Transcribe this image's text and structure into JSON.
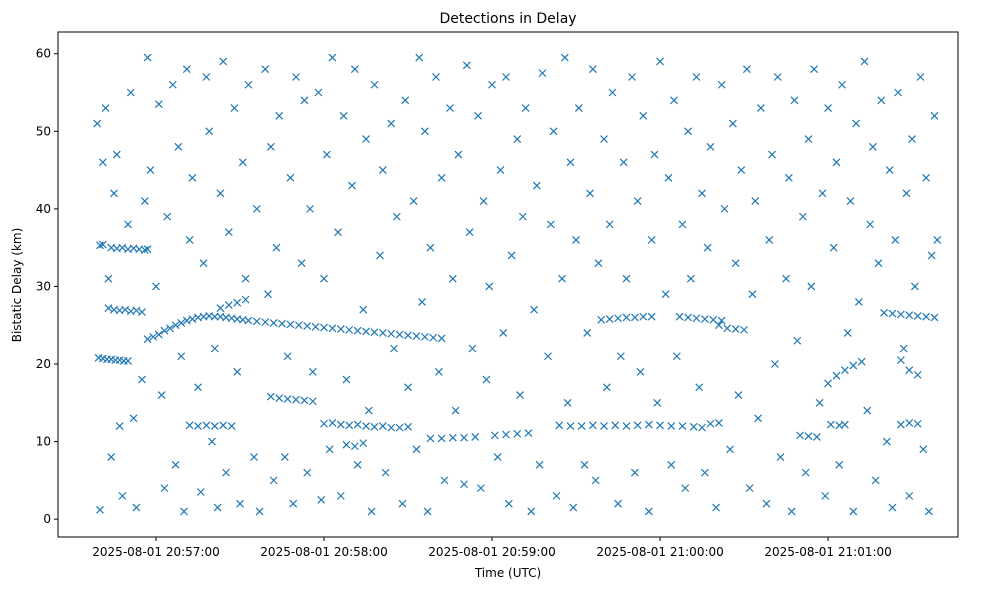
{
  "chart_data": {
    "type": "scatter",
    "title": "Detections in Delay",
    "xlabel": "Time (UTC)",
    "ylabel": "Bistatic Delay (km)",
    "x_units": "seconds since 2025-08-01 20:56:00 UTC",
    "xlim": [
      25,
      346.4
    ],
    "ylim": [
      -2.3,
      62.8
    ],
    "marker": "x",
    "color": "#1f77b4",
    "grid": false,
    "x_ticks": [
      {
        "value": 60,
        "label": "2025-08-01 20:57:00"
      },
      {
        "value": 120,
        "label": "2025-08-01 20:58:00"
      },
      {
        "value": 180,
        "label": "2025-08-01 20:59:00"
      },
      {
        "value": 240,
        "label": "2025-08-01 21:00:00"
      },
      {
        "value": 300,
        "label": "2025-08-01 21:01:00"
      }
    ],
    "y_ticks": [
      {
        "value": 0,
        "label": "0"
      },
      {
        "value": 10,
        "label": "10"
      },
      {
        "value": 20,
        "label": "20"
      },
      {
        "value": 30,
        "label": "30"
      },
      {
        "value": 40,
        "label": "40"
      },
      {
        "value": 50,
        "label": "50"
      },
      {
        "value": 60,
        "label": "60"
      }
    ],
    "points": [
      [
        40,
        35.3
      ],
      [
        41,
        35.4
      ],
      [
        44,
        35.0
      ],
      [
        46,
        34.9
      ],
      [
        48,
        35.0
      ],
      [
        50,
        34.8
      ],
      [
        52,
        34.9
      ],
      [
        54,
        34.8
      ],
      [
        56,
        34.7
      ],
      [
        57,
        34.8
      ],
      [
        39.5,
        20.8
      ],
      [
        41,
        20.7
      ],
      [
        42.5,
        20.6
      ],
      [
        44,
        20.6
      ],
      [
        45.5,
        20.5
      ],
      [
        47,
        20.5
      ],
      [
        48.5,
        20.4
      ],
      [
        50,
        20.4
      ],
      [
        43,
        27.2
      ],
      [
        45,
        27.0
      ],
      [
        47,
        26.9
      ],
      [
        49,
        27.0
      ],
      [
        51,
        26.8
      ],
      [
        53,
        26.9
      ],
      [
        55,
        26.7
      ],
      [
        57,
        23.2
      ],
      [
        59,
        23.5
      ],
      [
        61,
        23.8
      ],
      [
        63,
        24.3
      ],
      [
        65,
        24.6
      ],
      [
        67,
        25.0
      ],
      [
        69,
        25.3
      ],
      [
        71,
        25.6
      ],
      [
        73,
        25.8
      ],
      [
        75,
        26.0
      ],
      [
        77,
        26.1
      ],
      [
        79,
        26.2
      ],
      [
        81,
        26.1
      ],
      [
        83,
        26.1
      ],
      [
        85,
        26.0
      ],
      [
        87,
        25.9
      ],
      [
        89,
        25.8
      ],
      [
        91,
        25.7
      ],
      [
        93,
        25.6
      ],
      [
        96,
        25.5
      ],
      [
        99,
        25.4
      ],
      [
        102,
        25.3
      ],
      [
        105,
        25.2
      ],
      [
        108,
        25.1
      ],
      [
        111,
        25.0
      ],
      [
        114,
        24.9
      ],
      [
        117,
        24.8
      ],
      [
        120,
        24.7
      ],
      [
        123,
        24.6
      ],
      [
        126,
        24.5
      ],
      [
        129,
        24.4
      ],
      [
        132,
        24.3
      ],
      [
        135,
        24.2
      ],
      [
        138,
        24.1
      ],
      [
        141,
        24.0
      ],
      [
        144,
        23.9
      ],
      [
        147,
        23.8
      ],
      [
        150,
        23.7
      ],
      [
        153,
        23.6
      ],
      [
        156,
        23.5
      ],
      [
        159,
        23.4
      ],
      [
        162,
        23.3
      ],
      [
        83,
        27.2
      ],
      [
        86,
        27.6
      ],
      [
        89,
        27.9
      ],
      [
        92,
        28.3
      ],
      [
        72,
        12.1
      ],
      [
        75,
        12.0
      ],
      [
        78,
        12.1
      ],
      [
        81,
        12.0
      ],
      [
        84,
        12.1
      ],
      [
        87,
        12.0
      ],
      [
        101,
        15.8
      ],
      [
        104,
        15.6
      ],
      [
        107,
        15.5
      ],
      [
        110,
        15.4
      ],
      [
        113,
        15.3
      ],
      [
        116,
        15.2
      ],
      [
        120,
        12.3
      ],
      [
        123,
        12.4
      ],
      [
        126,
        12.2
      ],
      [
        129,
        12.1
      ],
      [
        132,
        12.2
      ],
      [
        135,
        12.0
      ],
      [
        138,
        11.9
      ],
      [
        141,
        12.0
      ],
      [
        144,
        11.8
      ],
      [
        147,
        11.8
      ],
      [
        150,
        11.9
      ],
      [
        128,
        9.6
      ],
      [
        131,
        9.4
      ],
      [
        134,
        9.8
      ],
      [
        158,
        10.4
      ],
      [
        162,
        10.4
      ],
      [
        166,
        10.5
      ],
      [
        170,
        10.5
      ],
      [
        174,
        10.6
      ],
      [
        181,
        10.8
      ],
      [
        185,
        10.9
      ],
      [
        189,
        11.0
      ],
      [
        193,
        11.1
      ],
      [
        204,
        12.1
      ],
      [
        208,
        12.0
      ],
      [
        212,
        12.0
      ],
      [
        216,
        12.1
      ],
      [
        220,
        12.0
      ],
      [
        224,
        12.1
      ],
      [
        228,
        12.0
      ],
      [
        232,
        12.1
      ],
      [
        236,
        12.2
      ],
      [
        240,
        12.1
      ],
      [
        244,
        12.0
      ],
      [
        248,
        12.0
      ],
      [
        252,
        11.9
      ],
      [
        255,
        11.8
      ],
      [
        258,
        12.3
      ],
      [
        261,
        12.4
      ],
      [
        219,
        25.7
      ],
      [
        222,
        25.8
      ],
      [
        225,
        25.9
      ],
      [
        228,
        26.0
      ],
      [
        231,
        26.0
      ],
      [
        234,
        26.1
      ],
      [
        237,
        26.1
      ],
      [
        247,
        26.1
      ],
      [
        250,
        26.0
      ],
      [
        253,
        25.9
      ],
      [
        256,
        25.8
      ],
      [
        259,
        25.7
      ],
      [
        262,
        25.6
      ],
      [
        264,
        24.6
      ],
      [
        267,
        24.5
      ],
      [
        270,
        24.4
      ],
      [
        290,
        10.8
      ],
      [
        293,
        10.7
      ],
      [
        296,
        10.6
      ],
      [
        301,
        12.2
      ],
      [
        304,
        12.1
      ],
      [
        306,
        12.2
      ],
      [
        320,
        26.6
      ],
      [
        323,
        26.5
      ],
      [
        326,
        26.4
      ],
      [
        329,
        26.3
      ],
      [
        332,
        26.2
      ],
      [
        335,
        26.1
      ],
      [
        338,
        26.0
      ],
      [
        326,
        12.2
      ],
      [
        329,
        12.4
      ],
      [
        332,
        12.3
      ],
      [
        300,
        17.5
      ],
      [
        303,
        18.5
      ],
      [
        306,
        19.2
      ],
      [
        309,
        19.8
      ],
      [
        312,
        20.3
      ],
      [
        326,
        20.5
      ],
      [
        329,
        19.2
      ],
      [
        332,
        18.6
      ],
      [
        39,
        51
      ],
      [
        40,
        1.2
      ],
      [
        41,
        46
      ],
      [
        42,
        53
      ],
      [
        43,
        31
      ],
      [
        44,
        8
      ],
      [
        45,
        42
      ],
      [
        46,
        47
      ],
      [
        47,
        12
      ],
      [
        48,
        3
      ],
      [
        50,
        38
      ],
      [
        51,
        55
      ],
      [
        52,
        13
      ],
      [
        53,
        1.5
      ],
      [
        55,
        18
      ],
      [
        56,
        41
      ],
      [
        57,
        59.5
      ],
      [
        58,
        45
      ],
      [
        60,
        30
      ],
      [
        61,
        53.5
      ],
      [
        62,
        16
      ],
      [
        63,
        4
      ],
      [
        64,
        39
      ],
      [
        66,
        56
      ],
      [
        67,
        7
      ],
      [
        68,
        48
      ],
      [
        69,
        21
      ],
      [
        70,
        1
      ],
      [
        71,
        58
      ],
      [
        72,
        36
      ],
      [
        73,
        44
      ],
      [
        75,
        17
      ],
      [
        76,
        3.5
      ],
      [
        77,
        33
      ],
      [
        78,
        57
      ],
      [
        79,
        50
      ],
      [
        80,
        10
      ],
      [
        81,
        22
      ],
      [
        82,
        1.5
      ],
      [
        83,
        42
      ],
      [
        84,
        59
      ],
      [
        85,
        6
      ],
      [
        86,
        37
      ],
      [
        88,
        53
      ],
      [
        89,
        19
      ],
      [
        90,
        2
      ],
      [
        91,
        46
      ],
      [
        92,
        31
      ],
      [
        93,
        56
      ],
      [
        95,
        8
      ],
      [
        96,
        40
      ],
      [
        97,
        1
      ],
      [
        99,
        58
      ],
      [
        100,
        29
      ],
      [
        101,
        48
      ],
      [
        102,
        5
      ],
      [
        103,
        35
      ],
      [
        104,
        52
      ],
      [
        106,
        8
      ],
      [
        107,
        21
      ],
      [
        108,
        44
      ],
      [
        109,
        2
      ],
      [
        110,
        57
      ],
      [
        112,
        33
      ],
      [
        113,
        54
      ],
      [
        114,
        6
      ],
      [
        115,
        40
      ],
      [
        116,
        19
      ],
      [
        118,
        55
      ],
      [
        119,
        2.5
      ],
      [
        120,
        31
      ],
      [
        121,
        47
      ],
      [
        122,
        9
      ],
      [
        123,
        59.5
      ],
      [
        125,
        37
      ],
      [
        126,
        3
      ],
      [
        127,
        52
      ],
      [
        128,
        18
      ],
      [
        130,
        43
      ],
      [
        131,
        58
      ],
      [
        132,
        7
      ],
      [
        134,
        27
      ],
      [
        135,
        49
      ],
      [
        136,
        14
      ],
      [
        137,
        1
      ],
      [
        138,
        56
      ],
      [
        140,
        34
      ],
      [
        141,
        45
      ],
      [
        142,
        6
      ],
      [
        144,
        51
      ],
      [
        145,
        22
      ],
      [
        146,
        39
      ],
      [
        148,
        2
      ],
      [
        149,
        54
      ],
      [
        150,
        17
      ],
      [
        152,
        41
      ],
      [
        153,
        9
      ],
      [
        154,
        59.5
      ],
      [
        155,
        28
      ],
      [
        156,
        50
      ],
      [
        157,
        1
      ],
      [
        158,
        35
      ],
      [
        160,
        57
      ],
      [
        161,
        19
      ],
      [
        162,
        44
      ],
      [
        163,
        5
      ],
      [
        165,
        53
      ],
      [
        166,
        31
      ],
      [
        167,
        14
      ],
      [
        168,
        47
      ],
      [
        170,
        4.5
      ],
      [
        171,
        58.5
      ],
      [
        172,
        37
      ],
      [
        173,
        22
      ],
      [
        175,
        52
      ],
      [
        176,
        4
      ],
      [
        177,
        41
      ],
      [
        178,
        18
      ],
      [
        179,
        30
      ],
      [
        180,
        56
      ],
      [
        182,
        8
      ],
      [
        183,
        45
      ],
      [
        184,
        24
      ],
      [
        185,
        57
      ],
      [
        186,
        2
      ],
      [
        187,
        34
      ],
      [
        189,
        49
      ],
      [
        190,
        16
      ],
      [
        191,
        39
      ],
      [
        192,
        53
      ],
      [
        194,
        1
      ],
      [
        195,
        27
      ],
      [
        196,
        43
      ],
      [
        197,
        7
      ],
      [
        198,
        57.5
      ],
      [
        200,
        21
      ],
      [
        201,
        38
      ],
      [
        202,
        50
      ],
      [
        203,
        3
      ],
      [
        205,
        31
      ],
      [
        206,
        59.5
      ],
      [
        207,
        15
      ],
      [
        208,
        46
      ],
      [
        209,
        1.5
      ],
      [
        210,
        36
      ],
      [
        211,
        53
      ],
      [
        213,
        7
      ],
      [
        214,
        24
      ],
      [
        215,
        42
      ],
      [
        216,
        58
      ],
      [
        217,
        5
      ],
      [
        218,
        33
      ],
      [
        220,
        49
      ],
      [
        221,
        17
      ],
      [
        222,
        38
      ],
      [
        223,
        55
      ],
      [
        225,
        2
      ],
      [
        226,
        21
      ],
      [
        227,
        46
      ],
      [
        228,
        31
      ],
      [
        230,
        57
      ],
      [
        231,
        6
      ],
      [
        232,
        41
      ],
      [
        233,
        19
      ],
      [
        234,
        52
      ],
      [
        236,
        1
      ],
      [
        237,
        36
      ],
      [
        238,
        47
      ],
      [
        239,
        15
      ],
      [
        240,
        59
      ],
      [
        242,
        29
      ],
      [
        243,
        44
      ],
      [
        244,
        7
      ],
      [
        245,
        54
      ],
      [
        246,
        21
      ],
      [
        248,
        38
      ],
      [
        249,
        4
      ],
      [
        250,
        50
      ],
      [
        251,
        31
      ],
      [
        253,
        57
      ],
      [
        254,
        17
      ],
      [
        255,
        42
      ],
      [
        256,
        6
      ],
      [
        257,
        35
      ],
      [
        258,
        48
      ],
      [
        260,
        1.5
      ],
      [
        261,
        25
      ],
      [
        262,
        56
      ],
      [
        263,
        40
      ],
      [
        265,
        9
      ],
      [
        266,
        51
      ],
      [
        267,
        33
      ],
      [
        268,
        16
      ],
      [
        269,
        45
      ],
      [
        271,
        58
      ],
      [
        272,
        4
      ],
      [
        273,
        29
      ],
      [
        274,
        41
      ],
      [
        275,
        13
      ],
      [
        276,
        53
      ],
      [
        278,
        2
      ],
      [
        279,
        36
      ],
      [
        280,
        47
      ],
      [
        281,
        20
      ],
      [
        282,
        57
      ],
      [
        283,
        8
      ],
      [
        285,
        31
      ],
      [
        286,
        44
      ],
      [
        287,
        1
      ],
      [
        288,
        54
      ],
      [
        289,
        23
      ],
      [
        291,
        39
      ],
      [
        292,
        6
      ],
      [
        293,
        49
      ],
      [
        294,
        30
      ],
      [
        295,
        58
      ],
      [
        297,
        15
      ],
      [
        298,
        42
      ],
      [
        299,
        3
      ],
      [
        300,
        53
      ],
      [
        302,
        35
      ],
      [
        303,
        46
      ],
      [
        304,
        7
      ],
      [
        305,
        56
      ],
      [
        307,
        24
      ],
      [
        308,
        41
      ],
      [
        309,
        1
      ],
      [
        310,
        51
      ],
      [
        311,
        28
      ],
      [
        313,
        59
      ],
      [
        314,
        14
      ],
      [
        315,
        38
      ],
      [
        316,
        48
      ],
      [
        317,
        5
      ],
      [
        318,
        33
      ],
      [
        319,
        54
      ],
      [
        321,
        10
      ],
      [
        322,
        45
      ],
      [
        323,
        1.5
      ],
      [
        324,
        36
      ],
      [
        325,
        55
      ],
      [
        327,
        22
      ],
      [
        328,
        42
      ],
      [
        329,
        3
      ],
      [
        330,
        49
      ],
      [
        331,
        30
      ],
      [
        333,
        57
      ],
      [
        334,
        9
      ],
      [
        335,
        44
      ],
      [
        336,
        1
      ],
      [
        337,
        34
      ],
      [
        338,
        52
      ],
      [
        339,
        36
      ]
    ]
  }
}
